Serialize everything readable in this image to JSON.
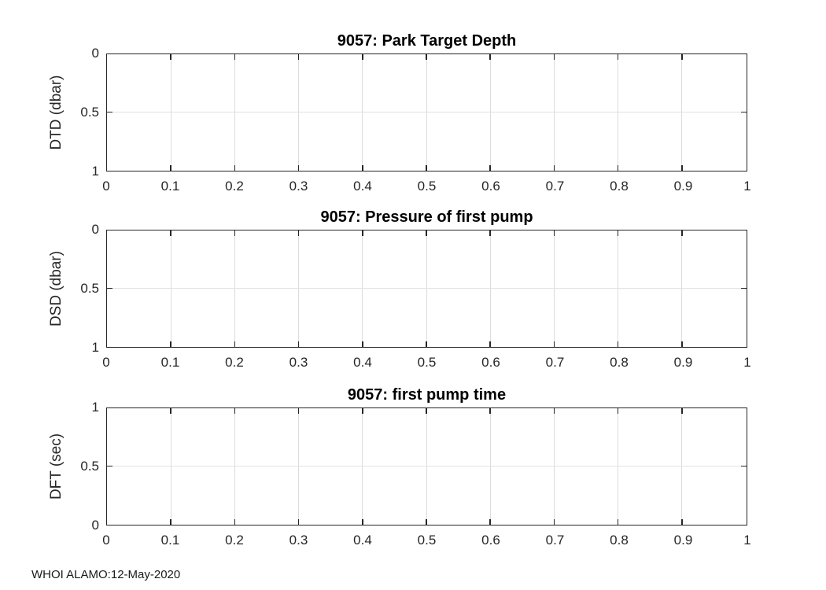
{
  "figure": {
    "footer": "WHOI ALAMO:12-May-2020",
    "colors": {
      "background": "#ffffff",
      "axis": "#262626",
      "grid": "#dcdcdc",
      "title": "#000000"
    }
  },
  "chart_data": [
    {
      "type": "line",
      "title": "9057: Park Target Depth",
      "xlabel": "",
      "ylabel": "DTD (dbar)",
      "xlim": [
        0,
        1
      ],
      "ylim": [
        0,
        1
      ],
      "y_direction": "reverse",
      "xticks": [
        0,
        0.1,
        0.2,
        0.3,
        0.4,
        0.5,
        0.6,
        0.7,
        0.8,
        0.9,
        1
      ],
      "xtick_labels": [
        "0",
        "0.1",
        "0.2",
        "0.3",
        "0.4",
        "0.5",
        "0.6",
        "0.7",
        "0.8",
        "0.9",
        "1"
      ],
      "yticks": [
        0,
        0.5,
        1
      ],
      "ytick_labels": [
        "0",
        "0.5",
        "1"
      ],
      "grid": true,
      "series": []
    },
    {
      "type": "line",
      "title": "9057: Pressure of first pump",
      "xlabel": "",
      "ylabel": "DSD (dbar)",
      "xlim": [
        0,
        1
      ],
      "ylim": [
        0,
        1
      ],
      "y_direction": "reverse",
      "xticks": [
        0,
        0.1,
        0.2,
        0.3,
        0.4,
        0.5,
        0.6,
        0.7,
        0.8,
        0.9,
        1
      ],
      "xtick_labels": [
        "0",
        "0.1",
        "0.2",
        "0.3",
        "0.4",
        "0.5",
        "0.6",
        "0.7",
        "0.8",
        "0.9",
        "1"
      ],
      "yticks": [
        0,
        0.5,
        1
      ],
      "ytick_labels": [
        "0",
        "0.5",
        "1"
      ],
      "grid": true,
      "series": []
    },
    {
      "type": "line",
      "title": "9057: first pump time",
      "xlabel": "",
      "ylabel": "DFT (sec)",
      "xlim": [
        0,
        1
      ],
      "ylim": [
        0,
        1
      ],
      "y_direction": "normal",
      "xticks": [
        0,
        0.1,
        0.2,
        0.3,
        0.4,
        0.5,
        0.6,
        0.7,
        0.8,
        0.9,
        1
      ],
      "xtick_labels": [
        "0",
        "0.1",
        "0.2",
        "0.3",
        "0.4",
        "0.5",
        "0.6",
        "0.7",
        "0.8",
        "0.9",
        "1"
      ],
      "yticks": [
        0,
        0.5,
        1
      ],
      "ytick_labels": [
        "0",
        "0.5",
        "1"
      ],
      "grid": true,
      "series": []
    }
  ]
}
